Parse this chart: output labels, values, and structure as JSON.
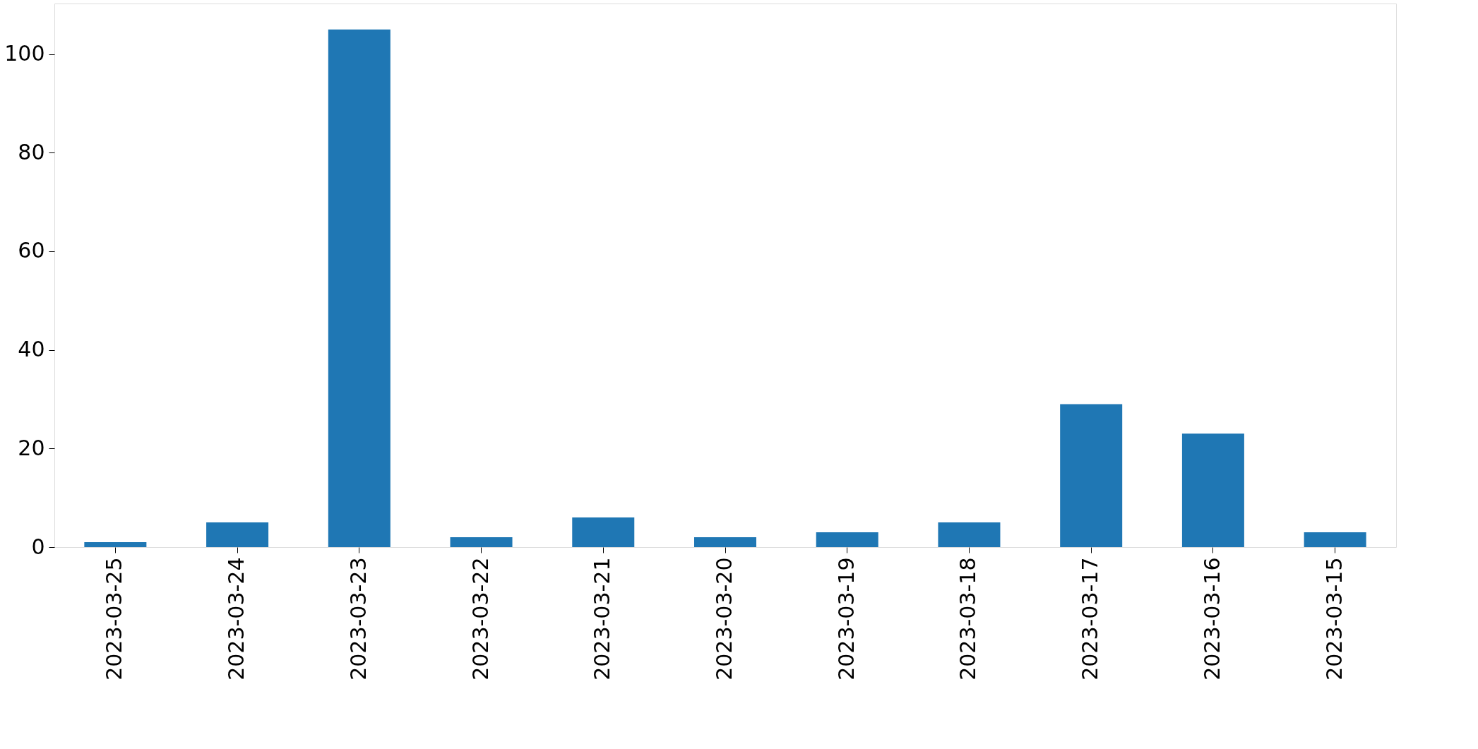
{
  "chart_data": {
    "type": "bar",
    "categories": [
      "2023-03-25",
      "2023-03-24",
      "2023-03-23",
      "2023-03-22",
      "2023-03-21",
      "2023-03-20",
      "2023-03-19",
      "2023-03-18",
      "2023-03-17",
      "2023-03-16",
      "2023-03-15"
    ],
    "values": [
      1,
      5,
      105,
      2,
      6,
      2,
      3,
      5,
      29,
      23,
      3
    ],
    "color": "#1f77b4",
    "ylim": [
      0,
      110.25
    ],
    "yticks": [
      0,
      20,
      40,
      60,
      80,
      100
    ]
  }
}
